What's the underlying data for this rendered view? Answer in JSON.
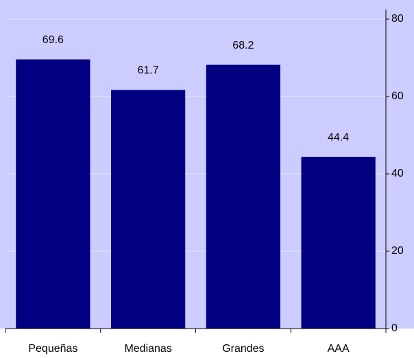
{
  "chart_data": {
    "type": "bar",
    "categories": [
      "Pequeñas",
      "Medianas",
      "Grandes",
      "AAA"
    ],
    "values": [
      69.6,
      61.7,
      68.2,
      44.4
    ],
    "color": "#000080",
    "ylim": [
      0,
      80
    ],
    "yticks": [
      0,
      20,
      40,
      60,
      80
    ],
    "grid": true
  }
}
